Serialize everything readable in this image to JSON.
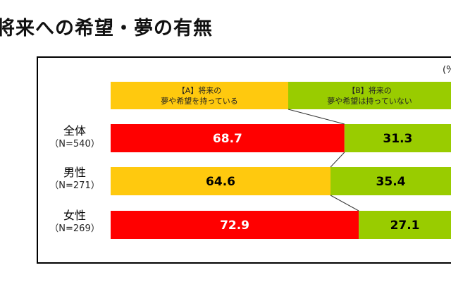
{
  "page": {
    "title": "将来への希望・夢の有無",
    "unit": "(%"
  },
  "legend": {
    "a_line1": "【A】将来の",
    "a_line2": "夢や希望を持っている",
    "b_line1": "【B】将来の",
    "b_line2": "夢や希望は持っていない"
  },
  "rows": [
    {
      "name": "全体",
      "n": "（N=540）"
    },
    {
      "name": "男性",
      "n": "（N=271）"
    },
    {
      "name": "女性",
      "n": "（N=269）"
    }
  ],
  "colors": {
    "red": "#ff0000",
    "yellow": "#ffc90e",
    "green": "#99cc00"
  },
  "chart_data": {
    "type": "bar",
    "stacked": true,
    "orientation": "horizontal",
    "categories": [
      "全体",
      "男性",
      "女性"
    ],
    "series": [
      {
        "name": "【A】将来の夢や希望を持っている",
        "values": [
          68.7,
          64.6,
          72.9
        ],
        "colors": [
          "#ff0000",
          "#ffc90e",
          "#ff0000"
        ]
      },
      {
        "name": "【B】将来の夢や希望は持っていない",
        "values": [
          31.3,
          35.4,
          27.1
        ],
        "color": "#99cc00"
      }
    ],
    "value_labels": [
      [
        "68.7",
        "31.3"
      ],
      [
        "64.6",
        "35.4"
      ],
      [
        "72.9",
        "27.1"
      ]
    ],
    "xlim": [
      0,
      100
    ],
    "grid": false,
    "legend": "top"
  }
}
